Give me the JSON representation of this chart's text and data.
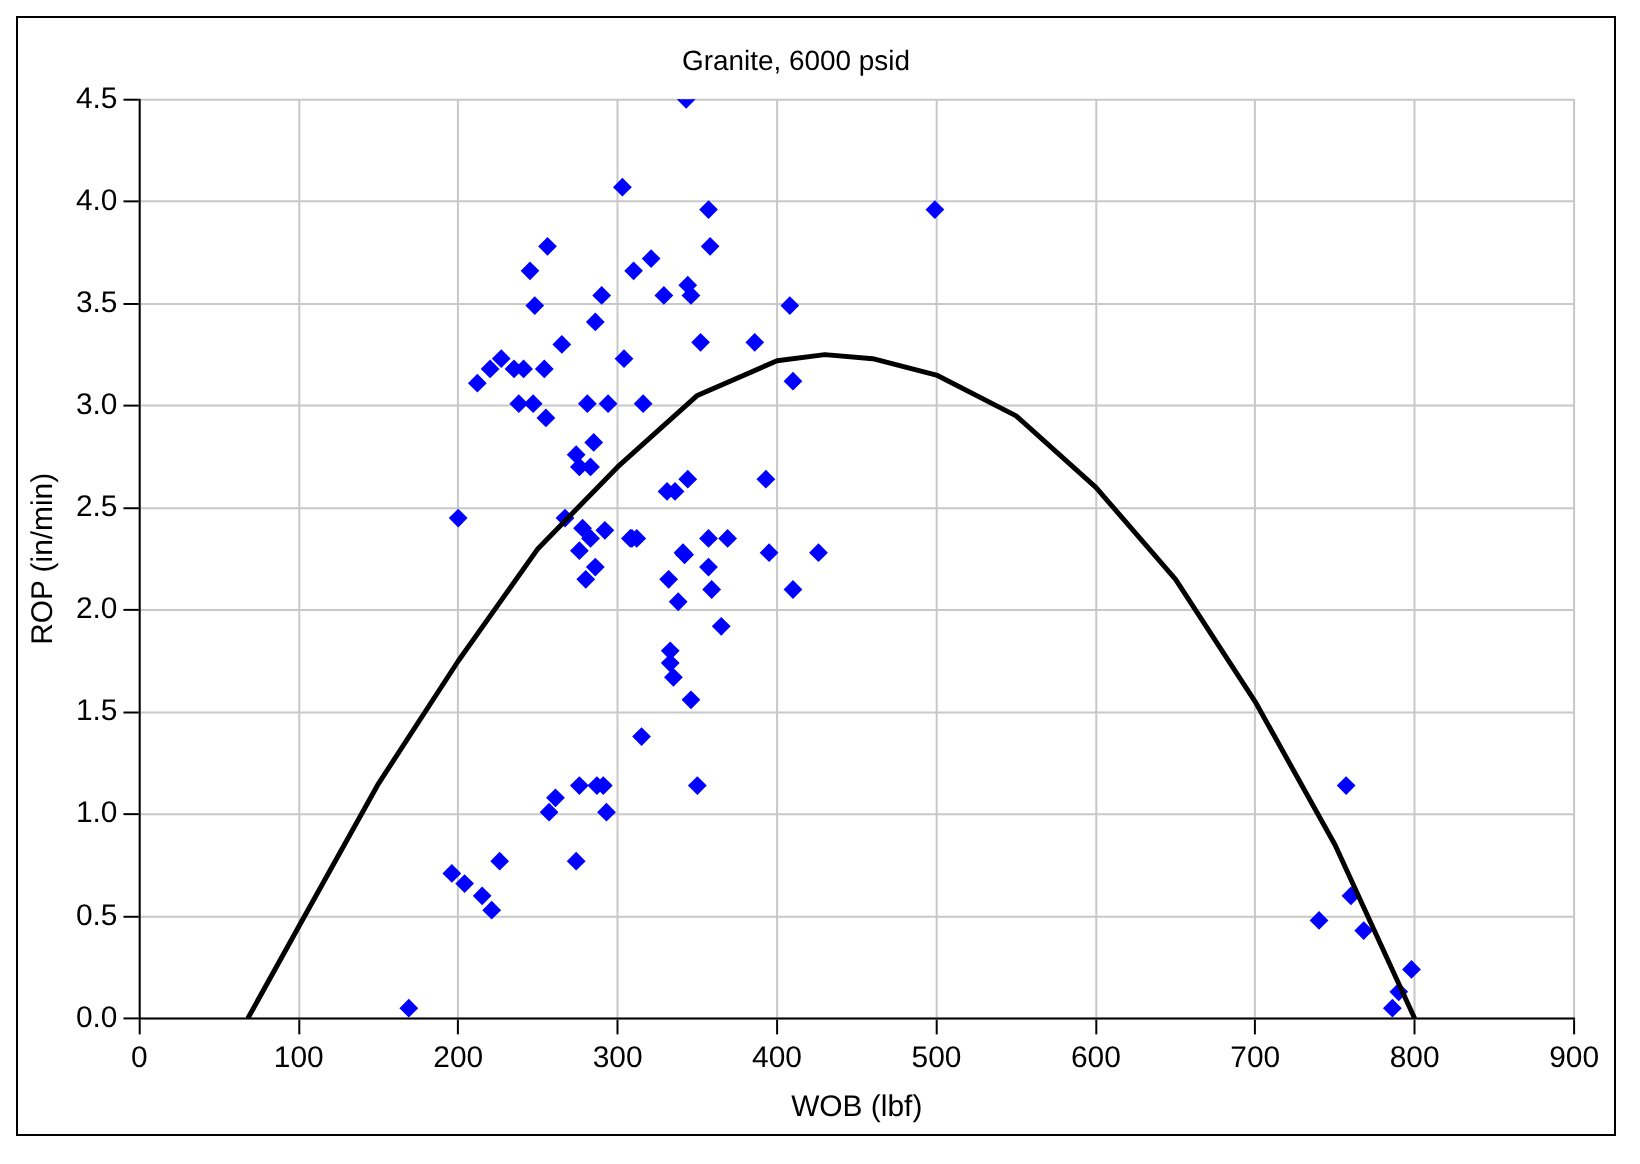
{
  "chart_data": {
    "type": "scatter",
    "title": "Granite, 6000 psid",
    "xlabel": "WOB (lbf)",
    "ylabel": "ROP (in/min)",
    "xlim": [
      0,
      900
    ],
    "xticks": [
      0,
      100,
      200,
      300,
      400,
      500,
      600,
      700,
      800,
      900
    ],
    "ylim": [
      0,
      4.5
    ],
    "yticks": [
      {
        "value": 0,
        "label": "0.0"
      },
      {
        "value": 0.5,
        "label": "0.5"
      },
      {
        "value": 1,
        "label": "1.0"
      },
      {
        "value": 1.5,
        "label": "1.5"
      },
      {
        "value": 2,
        "label": "2.0"
      },
      {
        "value": 2.5,
        "label": "2.5"
      },
      {
        "value": 3,
        "label": "3.0"
      },
      {
        "value": 3.5,
        "label": "3.5"
      },
      {
        "value": 4,
        "label": "4.0"
      },
      {
        "value": 4.5,
        "label": "4.5"
      }
    ],
    "grid": true,
    "marker": "diamond",
    "legend": false,
    "series": [
      {
        "color": "#0000ff",
        "x": [
          303,
          256,
          245,
          310,
          290,
          248,
          286,
          265,
          304,
          227,
          220,
          235,
          241,
          254,
          212,
          238,
          247,
          255,
          281,
          294,
          316,
          285,
          274,
          276,
          283,
          200,
          267,
          278,
          292,
          283,
          276,
          308,
          343,
          357,
          499,
          358,
          321,
          329,
          344,
          346,
          408,
          352,
          386,
          410,
          331,
          336,
          344,
          393,
          309,
          312,
          341,
          357,
          369,
          395,
          426,
          280,
          286,
          315,
          261,
          257,
          276,
          287,
          291,
          293,
          226,
          274,
          196,
          204,
          215,
          221,
          169,
          342,
          357,
          359,
          332,
          338,
          410,
          365,
          333,
          333,
          335,
          346,
          350,
          740,
          757,
          760,
          768,
          786,
          790,
          798
        ],
        "values": [
          4.07,
          3.78,
          3.66,
          3.66,
          3.54,
          3.49,
          3.41,
          3.3,
          3.23,
          3.23,
          3.18,
          3.18,
          3.18,
          3.18,
          3.11,
          3.01,
          3.01,
          2.94,
          3.01,
          3.01,
          3.01,
          2.82,
          2.76,
          2.7,
          2.7,
          2.45,
          2.45,
          2.4,
          2.39,
          2.35,
          2.29,
          2.35,
          4.5,
          3.96,
          3.96,
          3.78,
          3.72,
          3.54,
          3.59,
          3.54,
          3.49,
          3.31,
          3.31,
          3.12,
          2.58,
          2.58,
          2.64,
          2.64,
          2.35,
          2.35,
          2.28,
          2.35,
          2.35,
          2.28,
          2.28,
          2.15,
          2.21,
          1.38,
          1.08,
          1.01,
          1.14,
          1.14,
          1.14,
          1.01,
          0.77,
          0.77,
          0.71,
          0.66,
          0.6,
          0.53,
          0.05,
          2.27,
          2.21,
          2.1,
          2.15,
          2.04,
          2.1,
          1.92,
          1.8,
          1.74,
          1.67,
          1.56,
          1.14,
          0.48,
          1.14,
          0.6,
          0.43,
          0.05,
          0.13,
          0.24
        ]
      },
      {
        "type": "line",
        "color": "#000000",
        "marker": "none",
        "x": [
          68,
          100,
          150,
          200,
          250,
          300,
          350,
          400,
          430,
          460,
          500,
          550,
          600,
          650,
          700,
          750,
          800
        ],
        "values": [
          0,
          0.45,
          1.15,
          1.75,
          2.3,
          2.7,
          3.05,
          3.22,
          3.25,
          3.23,
          3.15,
          2.95,
          2.6,
          2.15,
          1.55,
          0.85,
          0
        ]
      }
    ]
  }
}
